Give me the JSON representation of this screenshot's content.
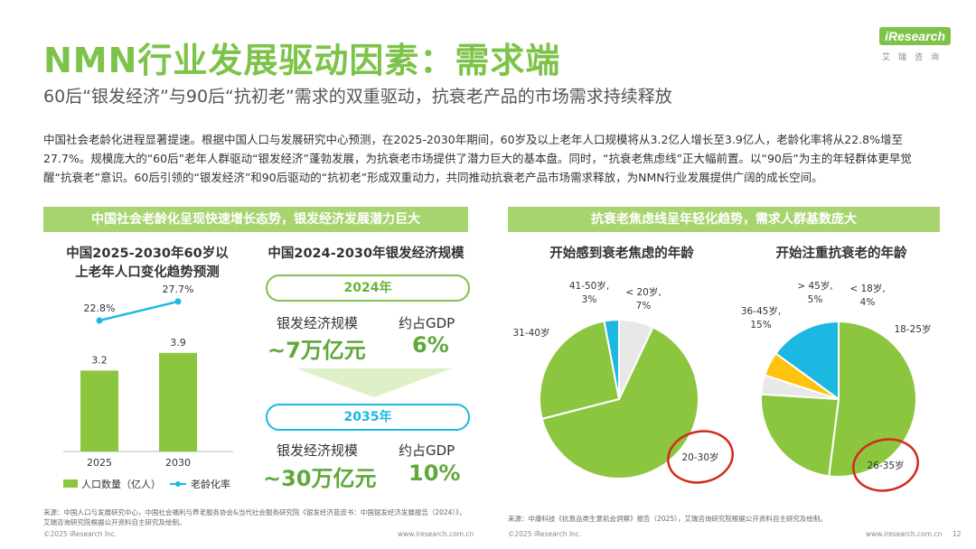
{
  "title": "NMN行业发展驱动因素：需求端",
  "subtitle": "60后“银发经济”与90后“抗初老”需求的双重驱动，抗衰老产品的市场需求持续释放",
  "logo": {
    "brand": "iResearch",
    "sub": "艾瑞咨询"
  },
  "intro": "中国社会老龄化进程显著提速。根据中国人口与发展研究中心预测，在2025-2030年期间，60岁及以上老年人口规模将从3.2亿人增长至3.9亿人，老龄化率将从22.8%增至27.7%。规模庞大的“60后”老年人群驱动“银发经济”蓬勃发展，为抗衰老市场提供了潜力巨大的基本盘。同时，“抗衰老焦虑线”正大幅前置。以“90后”为主的年轻群体更早觉醒“抗衰老”意识。60后引领的“银发经济”和90后驱动的“抗初老”形成双重动力，共同推动抗衰老产品市场需求释放，为NMN行业发展提供广阔的成长空间。",
  "left_banner": "中国社会老龄化呈现快速增长态势，银发经济发展潜力巨大",
  "right_banner": "抗衰老焦虑线呈年轻化趋势，需求人群基数庞大",
  "scale": {
    "title": "中国2024-2030年银发经济规模",
    "blocks": [
      {
        "year": "2024年",
        "label_a": "银发经济规模",
        "value_a": "~7万亿元",
        "label_b": "约占GDP",
        "value_b": "6%"
      },
      {
        "year": "2035年",
        "label_a": "银发经济规模",
        "value_a": "~30万亿元",
        "label_b": "约占GDP",
        "value_b": "10%"
      }
    ]
  },
  "colors": {
    "green": "#8cc63f",
    "cyan": "#1cb8e2",
    "yellow": "#ffc20e",
    "light": "#e8e8e8",
    "accent_text": "#7dc34a",
    "banner": "#a8d46f",
    "circle": "#d42a1c"
  },
  "chart_data": [
    {
      "type": "bar",
      "title": "中国2025-2030年60岁以上老年人口变化趋势预测",
      "categories": [
        "2025",
        "2030"
      ],
      "series": [
        {
          "name": "人口数量（亿人）",
          "values": [
            3.2,
            3.9
          ],
          "labels": [
            "3.2",
            "3.9"
          ]
        },
        {
          "name": "老龄化率",
          "type": "line",
          "values": [
            22.8,
            27.7
          ],
          "labels": [
            "22.8%",
            "27.7%"
          ]
        }
      ]
    },
    {
      "type": "pie",
      "title": "开始感到衰老焦虑的年龄",
      "slices": [
        {
          "label": "20-30岁",
          "value": 64,
          "pct": "",
          "color": "#8cc63f",
          "highlight": true
        },
        {
          "label": "31-40岁",
          "value": 26,
          "pct": "",
          "color": "#8cc63f"
        },
        {
          "label": "41-50岁,",
          "value": 3,
          "pct": "3%",
          "color": "#1cb8e2"
        },
        {
          "label": "< 20岁,",
          "value": 7,
          "pct": "7%",
          "color": "#e8e8e8"
        }
      ]
    },
    {
      "type": "pie",
      "title": "开始注重抗衰老的年龄",
      "slices": [
        {
          "label": "26-35岁",
          "value": 52,
          "pct": "",
          "color": "#8cc63f",
          "highlight": true
        },
        {
          "label": "18-25岁",
          "value": 24,
          "pct": "",
          "color": "#8cc63f"
        },
        {
          "label": "< 18岁,",
          "value": 4,
          "pct": "4%",
          "color": "#e8e8e8"
        },
        {
          "label": "> 45岁,",
          "value": 5,
          "pct": "5%",
          "color": "#ffc20e"
        },
        {
          "label": "36-45岁,",
          "value": 15,
          "pct": "15%",
          "color": "#1cb8e2"
        }
      ]
    }
  ],
  "sources": {
    "left": "来源：中国人口与发展研究中心，中国社会福利与养老服务协会&当代社会服务研究院《银发经济蓝皮书：中国银发经济发展报告（2024）》，艾瑞咨询研究院根据公开资料自主研究及绘制。",
    "right": "来源：中康科技《抗衰品类生意机会洞察》报告（2025），艾瑞咨询研究院根据公开资料自主研究及绘制。"
  },
  "footer": {
    "copyright": "©2025 iResearch Inc.",
    "url": "www.iresearch.com.cn",
    "page": "12"
  }
}
